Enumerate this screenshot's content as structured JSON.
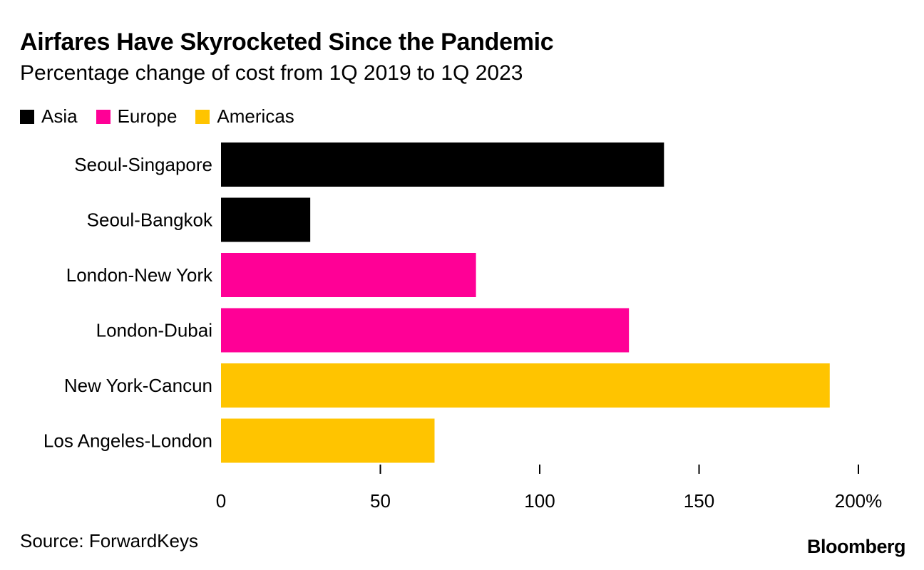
{
  "header": {
    "title": "Airfares Have Skyrocketed Since the Pandemic",
    "subtitle": "Percentage change of cost from 1Q 2019 to 1Q 2023"
  },
  "legend": [
    {
      "label": "Asia",
      "color": "#000000"
    },
    {
      "label": "Europe",
      "color": "#ff0096"
    },
    {
      "label": "Americas",
      "color": "#ffc400"
    }
  ],
  "footer": {
    "source": "Source: ForwardKeys",
    "brand": "Bloomberg"
  },
  "chart_data": {
    "type": "bar",
    "orientation": "horizontal",
    "title": "Airfares Have Skyrocketed Since the Pandemic",
    "subtitle": "Percentage change of cost from 1Q 2019 to 1Q 2023",
    "categories": [
      "Seoul-Singapore",
      "Seoul-Bangkok",
      "London-New York",
      "London-Dubai",
      "New York-Cancun",
      "Los Angeles-London"
    ],
    "values": [
      139,
      28,
      80,
      128,
      191,
      67
    ],
    "groups": [
      "Asia",
      "Asia",
      "Europe",
      "Europe",
      "Americas",
      "Americas"
    ],
    "group_colors": {
      "Asia": "#000000",
      "Europe": "#ff0096",
      "Americas": "#ffc400"
    },
    "xlim": [
      0,
      200
    ],
    "xticks": [
      0,
      50,
      100,
      150,
      200
    ],
    "xtick_labels": [
      "0",
      "50",
      "100",
      "150",
      "200%"
    ],
    "xlabel": "",
    "ylabel": "",
    "legend_position": "top-left",
    "grid": false
  }
}
